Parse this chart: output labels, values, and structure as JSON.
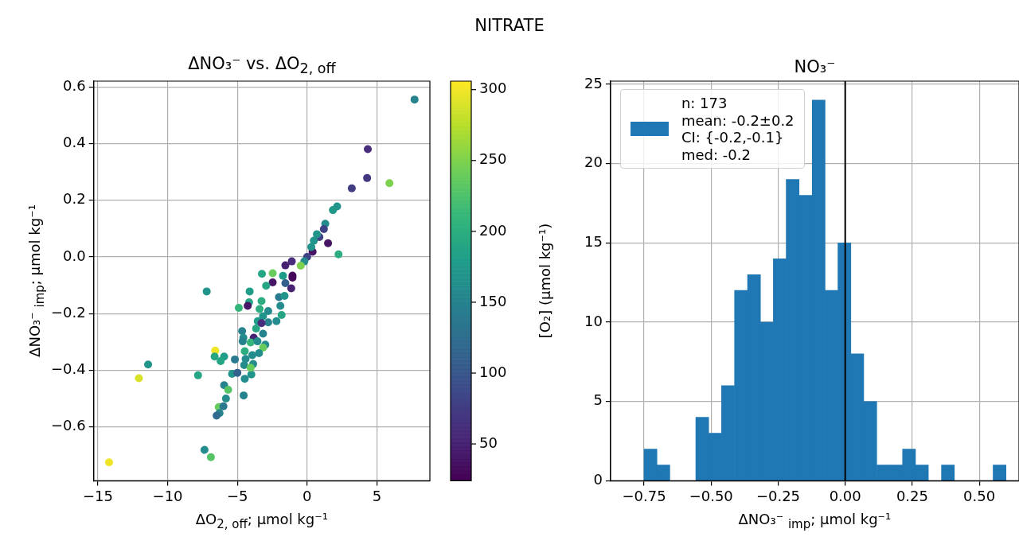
{
  "chart_data": [
    {
      "type": "scatter",
      "title": "ΔNO₃⁻  vs. ΔO$_{2, off}$",
      "xlabel": "ΔO$_{2, off}$; μmol kg⁻¹",
      "ylabel": "ΔNO₃⁻ $_{imp}$; μmol kg⁻¹",
      "clabel": "[O₂] (μmol kg⁻¹)",
      "annotations": [
        "NITRATE"
      ],
      "x": [
        7.7,
        4.35,
        4.3,
        3.2,
        5.9,
        2.15,
        1.85,
        1.3,
        1.2,
        0.88,
        0.7,
        0.48,
        1.5,
        2.25,
        0.39,
        0.3,
        0.0,
        -0.2,
        -1.1,
        -1.56,
        -0.46,
        -2.47,
        -3.24,
        -1.05,
        -1.73,
        -7.2,
        -1.05,
        -2.47,
        -1.56,
        -2.94,
        -1.14,
        -4.12,
        -2.02,
        -1.62,
        -4.16,
        -4.26,
        -3.27,
        -4.9,
        -3.41,
        -2.79,
        -1.92,
        -1.83,
        -3.16,
        -2.2,
        -3.54,
        -2.79,
        -3.27,
        -3.66,
        -4.66,
        -3.16,
        -4.57,
        -3.83,
        -4.05,
        -4.62,
        -3.56,
        -3.0,
        -3.16,
        -6.59,
        -4.47,
        -3.45,
        -6.63,
        -5.95,
        -3.93,
        -6.2,
        -5.18,
        -4.41,
        -3.87,
        -11.4,
        -4.51,
        -12.06,
        -7.82,
        -5.38,
        -5.0,
        -4.0,
        -4.05,
        -4.47,
        -5.95,
        -5.66,
        -4.55,
        -5.82,
        -6.34,
        -6.0,
        -6.28,
        -6.49,
        -7.36,
        -6.9,
        -14.2
      ],
      "values": [
        0.555,
        0.38,
        0.278,
        0.242,
        0.26,
        0.178,
        0.165,
        0.117,
        0.098,
        0.07,
        0.08,
        0.057,
        0.048,
        0.009,
        0.018,
        0.035,
        0.0,
        -0.016,
        -0.016,
        -0.03,
        -0.031,
        -0.058,
        -0.06,
        -0.066,
        -0.067,
        -0.122,
        -0.073,
        -0.09,
        -0.093,
        -0.102,
        -0.111,
        -0.122,
        -0.142,
        -0.138,
        -0.16,
        -0.173,
        -0.156,
        -0.18,
        -0.184,
        -0.191,
        -0.173,
        -0.205,
        -0.209,
        -0.227,
        -0.227,
        -0.231,
        -0.234,
        -0.253,
        -0.262,
        -0.271,
        -0.285,
        -0.285,
        -0.302,
        -0.298,
        -0.298,
        -0.31,
        -0.32,
        -0.331,
        -0.333,
        -0.34,
        -0.352,
        -0.352,
        -0.347,
        -0.368,
        -0.362,
        -0.36,
        -0.378,
        -0.38,
        -0.382,
        -0.428,
        -0.418,
        -0.413,
        -0.409,
        -0.415,
        -0.391,
        -0.43,
        -0.453,
        -0.469,
        -0.489,
        -0.5,
        -0.53,
        -0.527,
        -0.551,
        -0.56,
        -0.681,
        -0.707,
        -0.725
      ],
      "cvalues": [
        150,
        60,
        70,
        75,
        250,
        170,
        175,
        160,
        80,
        80,
        170,
        170,
        40,
        200,
        40,
        170,
        80,
        160,
        60,
        50,
        250,
        240,
        190,
        30,
        180,
        170,
        30,
        40,
        110,
        190,
        50,
        180,
        140,
        170,
        190,
        40,
        200,
        210,
        200,
        160,
        160,
        190,
        170,
        160,
        180,
        150,
        60,
        190,
        150,
        150,
        160,
        50,
        210,
        150,
        160,
        160,
        240,
        300,
        200,
        160,
        190,
        180,
        160,
        190,
        140,
        160,
        160,
        170,
        160,
        290,
        190,
        170,
        110,
        170,
        240,
        160,
        150,
        230,
        150,
        160,
        240,
        140,
        150,
        120,
        160,
        230,
        300
      ],
      "clim": [
        24,
        306
      ],
      "cticks": [
        50,
        100,
        150,
        200,
        250,
        300
      ],
      "xlim": [
        -15.3,
        8.8
      ],
      "xticks": [
        {
          "value": -15,
          "label": "−15"
        },
        {
          "value": -10,
          "label": "−10"
        },
        {
          "value": -5,
          "label": "−5"
        },
        0,
        5
      ],
      "ylim": [
        -0.79,
        0.62
      ],
      "yticks": [
        {
          "value": -0.6,
          "label": "−0.6"
        },
        {
          "value": -0.4,
          "label": "−0.4"
        },
        {
          "value": -0.2,
          "label": "−0.2"
        },
        {
          "value": 0,
          "label": "0.0"
        },
        0.2,
        0.4,
        0.6
      ],
      "grid": true,
      "marker": "circle"
    },
    {
      "type": "histogram",
      "title": "NO₃⁻",
      "xlabel": "ΔNO₃⁻ $_{imp}$; μmol kg⁻¹",
      "bins": [
        -0.75,
        -0.702,
        -0.654,
        -0.605,
        -0.557,
        -0.509,
        -0.461,
        -0.413,
        -0.364,
        -0.316,
        -0.268,
        -0.22,
        -0.172,
        -0.123,
        -0.075,
        -0.027,
        0.021,
        0.069,
        0.118,
        0.166,
        0.214,
        0.262,
        0.31,
        0.359,
        0.407,
        0.455,
        0.503,
        0.551,
        0.6
      ],
      "series": [
        {
          "name": "n: 173\nmean: -0.2±0.2\nCI: {-0.2,-0.1}\nmed: -0.2",
          "color": "#1f77b4",
          "values": [
            2,
            1,
            0,
            0,
            4,
            3,
            6,
            12,
            13,
            10,
            14,
            19,
            18,
            24,
            12,
            15,
            8,
            5,
            1,
            1,
            2,
            1,
            0,
            1,
            0,
            0,
            0,
            1
          ]
        }
      ],
      "ref_lines": [
        {
          "axis": "x",
          "value": 0,
          "color": "#000000"
        }
      ],
      "xlim": [
        -0.875,
        0.648
      ],
      "xticks": [
        {
          "value": -0.75,
          "label": "−0.75"
        },
        {
          "value": -0.5,
          "label": "−0.50"
        },
        {
          "value": -0.25,
          "label": "−0.25"
        },
        {
          "value": 0,
          "label": "0.00"
        },
        0.25,
        {
          "value": 0.5,
          "label": "0.50"
        }
      ],
      "ylim": [
        0,
        25.2
      ],
      "yticks": [
        0,
        5,
        10,
        15,
        20,
        25
      ],
      "grid": true,
      "legend": "top left"
    }
  ]
}
